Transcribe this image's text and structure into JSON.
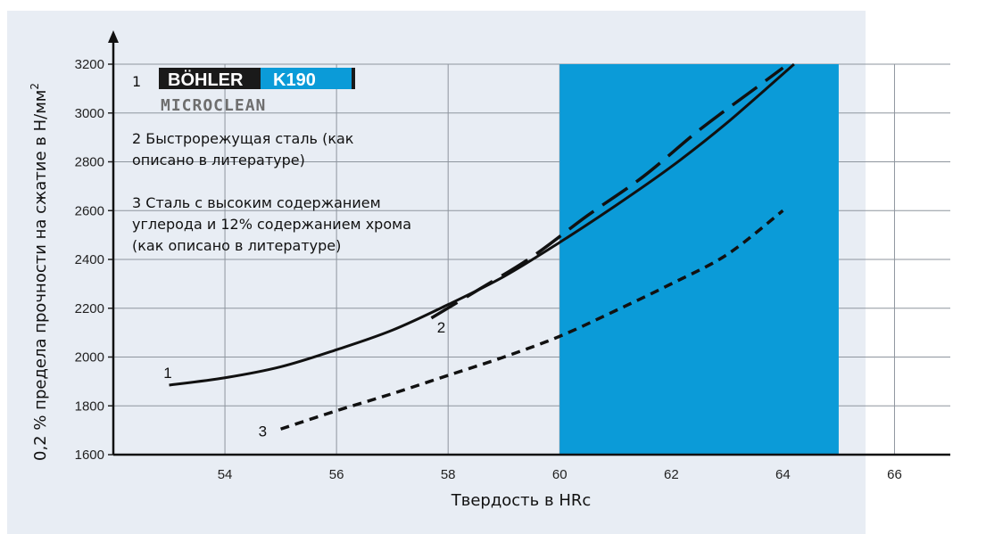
{
  "chart_data": {
    "type": "line",
    "title": "",
    "xlabel": "Твердость в HRc",
    "ylabel": "0,2 % предела прочности на сжатие в Н/мм",
    "ylabel_sup": "2",
    "xlim": [
      52,
      67
    ],
    "ylim": [
      1600,
      3200
    ],
    "x_ticks": [
      54,
      56,
      58,
      60,
      62,
      64,
      66
    ],
    "y_ticks": [
      1600,
      1800,
      2000,
      2200,
      2400,
      2600,
      2800,
      3000,
      3200
    ],
    "grid": true,
    "highlight_region": {
      "x_from": 60,
      "x_to": 65,
      "color": "#0b9bd8"
    },
    "series": [
      {
        "id": "1",
        "style": "solid",
        "points": [
          [
            53,
            1885
          ],
          [
            54,
            1915
          ],
          [
            55,
            1960
          ],
          [
            56,
            2030
          ],
          [
            57,
            2110
          ],
          [
            58,
            2215
          ],
          [
            59,
            2330
          ],
          [
            60,
            2470
          ],
          [
            61,
            2620
          ],
          [
            62,
            2780
          ],
          [
            63,
            2960
          ],
          [
            64.2,
            3200
          ]
        ]
      },
      {
        "id": "2",
        "style": "dashed",
        "points": [
          [
            57.7,
            2160
          ],
          [
            58.5,
            2270
          ],
          [
            59.5,
            2410
          ],
          [
            60.5,
            2580
          ],
          [
            61.5,
            2740
          ],
          [
            62.5,
            2930
          ],
          [
            63.5,
            3100
          ],
          [
            64,
            3185
          ]
        ]
      },
      {
        "id": "3",
        "style": "dotted",
        "points": [
          [
            55,
            1705
          ],
          [
            56,
            1780
          ],
          [
            57,
            1850
          ],
          [
            58,
            1925
          ],
          [
            59,
            2000
          ],
          [
            60,
            2085
          ],
          [
            61,
            2190
          ],
          [
            62,
            2300
          ],
          [
            63,
            2420
          ],
          [
            64,
            2600
          ]
        ]
      }
    ],
    "curve_labels": [
      {
        "text": "1",
        "x": 52.9,
        "y": 1915
      },
      {
        "text": "2",
        "x": 57.8,
        "y": 2100
      },
      {
        "text": "3",
        "x": 54.6,
        "y": 1675
      }
    ],
    "legend": {
      "item1_num": "1",
      "brand": "BÖHLER",
      "grade": "K190",
      "sub": "MICROCLEAN",
      "item2_line1": "2  Быстрорежущая сталь (как",
      "item2_line2": "описано в литературе)",
      "item3_line1": "3  Сталь с высоким содержанием",
      "item3_line2": "углерода и 12% содержанием хрома",
      "item3_line3": "(как описано в литературе)"
    }
  },
  "colors": {
    "panel": "#e8edf4",
    "highlight": "#0b9bd8",
    "grid": "#8e959e",
    "line": "#111111"
  }
}
